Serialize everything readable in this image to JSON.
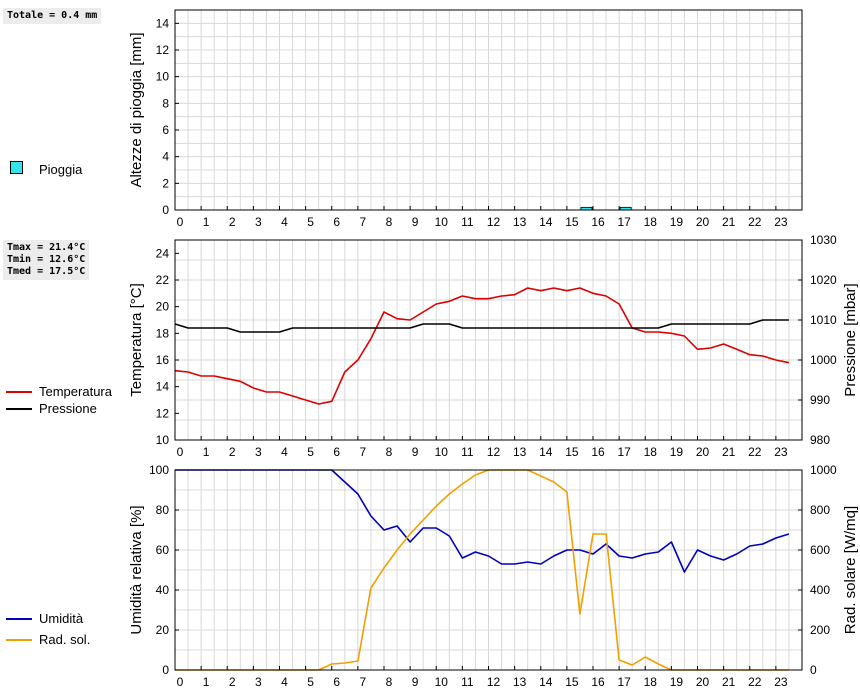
{
  "rain_panel": {
    "total_label": "Totale = 0.4 mm",
    "legend": {
      "label": "Pioggia",
      "color": "#33e6ee"
    }
  },
  "temp_panel": {
    "stats": [
      "Tmax = 21.4°C",
      "Tmin = 12.6°C",
      "Tmed = 17.5°C"
    ],
    "legend": [
      {
        "label": "Temperatura",
        "color": "#dd0000"
      },
      {
        "label": "Pressione",
        "color": "#000000"
      }
    ]
  },
  "hum_panel": {
    "legend": [
      {
        "label": "Umidità",
        "color": "#0000bb"
      },
      {
        "label": "Rad. sol.",
        "color": "#f2a000"
      }
    ]
  },
  "chart_data": [
    {
      "type": "bar",
      "ylabel": "Altezze di pioggia [mm]",
      "xlim": [
        0,
        24
      ],
      "ylim": [
        0,
        15
      ],
      "x_ticks": [
        0,
        1,
        2,
        3,
        4,
        5,
        6,
        7,
        8,
        9,
        10,
        11,
        12,
        13,
        14,
        15,
        16,
        17,
        18,
        19,
        20,
        21,
        22,
        23
      ],
      "y_ticks": [
        0,
        2,
        4,
        6,
        8,
        10,
        12,
        14
      ],
      "grid": true,
      "series": [
        {
          "name": "Pioggia",
          "color": "#33e6ee",
          "bars": [
            {
              "x0": 15.5,
              "x1": 16.0,
              "value": 0.2
            },
            {
              "x0": 17.0,
              "x1": 17.5,
              "value": 0.2
            }
          ]
        }
      ]
    },
    {
      "type": "line",
      "ylabel": "Temperatura [°C]",
      "y2label": "Pressione [mbar]",
      "xlim": [
        0,
        24
      ],
      "ylim": [
        10,
        25
      ],
      "y2lim": [
        980,
        1030
      ],
      "x_ticks": [
        0,
        1,
        2,
        3,
        4,
        5,
        6,
        7,
        8,
        9,
        10,
        11,
        12,
        13,
        14,
        15,
        16,
        17,
        18,
        19,
        20,
        21,
        22,
        23
      ],
      "y_ticks": [
        10,
        12,
        14,
        16,
        18,
        20,
        22,
        24
      ],
      "y2_ticks": [
        980,
        990,
        1000,
        1010,
        1020,
        1030
      ],
      "grid": true,
      "series": [
        {
          "name": "Temperatura",
          "axis": "left",
          "color": "#dd0000",
          "x": [
            0,
            0.5,
            1,
            1.5,
            2,
            2.5,
            3,
            3.5,
            4,
            4.5,
            5,
            5.5,
            6,
            6.5,
            7,
            7.5,
            8,
            8.5,
            9,
            9.5,
            10,
            10.5,
            11,
            11.5,
            12,
            12.5,
            13,
            13.5,
            14,
            14.5,
            15,
            15.5,
            16,
            16.5,
            17,
            17.5,
            18,
            18.5,
            19,
            19.5,
            20,
            20.5,
            21,
            21.5,
            22,
            22.5,
            23,
            23.5
          ],
          "y": [
            15.2,
            15.1,
            14.8,
            14.8,
            14.6,
            14.4,
            13.9,
            13.6,
            13.6,
            13.3,
            13.0,
            12.7,
            12.9,
            15.1,
            16.0,
            17.6,
            19.6,
            19.1,
            19.0,
            19.6,
            20.2,
            20.4,
            20.8,
            20.6,
            20.6,
            20.8,
            20.9,
            21.4,
            21.2,
            21.4,
            21.2,
            21.4,
            21.0,
            20.8,
            20.2,
            18.4,
            18.1,
            18.1,
            18.0,
            17.8,
            16.8,
            16.9,
            17.2,
            16.8,
            16.4,
            16.3,
            16.0,
            15.8
          ]
        },
        {
          "name": "Pressione",
          "axis": "right",
          "color": "#000000",
          "x": [
            0,
            0.5,
            1,
            1.5,
            2,
            2.5,
            3,
            3.5,
            4,
            4.5,
            5,
            5.5,
            6,
            6.5,
            7,
            7.5,
            8,
            8.5,
            9,
            9.5,
            10,
            10.5,
            11,
            11.5,
            12,
            12.5,
            13,
            13.5,
            14,
            14.5,
            15,
            15.5,
            16,
            16.5,
            17,
            17.5,
            18,
            18.5,
            19,
            19.5,
            20,
            20.5,
            21,
            21.5,
            22,
            22.5,
            23,
            23.5
          ],
          "y": [
            1009,
            1008,
            1008,
            1008,
            1008,
            1007,
            1007,
            1007,
            1007,
            1008,
            1008,
            1008,
            1008,
            1008,
            1008,
            1008,
            1008,
            1008,
            1008,
            1009,
            1009,
            1009,
            1008,
            1008,
            1008,
            1008,
            1008,
            1008,
            1008,
            1008,
            1008,
            1008,
            1008,
            1008,
            1008,
            1008,
            1008,
            1008,
            1009,
            1009,
            1009,
            1009,
            1009,
            1009,
            1009,
            1010,
            1010,
            1010
          ]
        }
      ]
    },
    {
      "type": "line",
      "ylabel": "Umidità relativa [%]",
      "y2label": "Rad. solare [W/mq]",
      "xlim": [
        0,
        24
      ],
      "ylim": [
        0,
        100
      ],
      "y2lim": [
        0,
        1000
      ],
      "x_ticks": [
        0,
        1,
        2,
        3,
        4,
        5,
        6,
        7,
        8,
        9,
        10,
        11,
        12,
        13,
        14,
        15,
        16,
        17,
        18,
        19,
        20,
        21,
        22,
        23
      ],
      "y_ticks": [
        0,
        20,
        40,
        60,
        80,
        100
      ],
      "y2_ticks": [
        0,
        200,
        400,
        600,
        800,
        1000
      ],
      "grid": true,
      "series": [
        {
          "name": "Umidità",
          "axis": "left",
          "color": "#0000bb",
          "x": [
            0,
            0.5,
            1,
            1.5,
            2,
            2.5,
            3,
            3.5,
            4,
            4.5,
            5,
            5.5,
            6,
            6.5,
            7,
            7.5,
            8,
            8.5,
            9,
            9.5,
            10,
            10.5,
            11,
            11.5,
            12,
            12.5,
            13,
            13.5,
            14,
            14.5,
            15,
            15.5,
            16,
            16.5,
            17,
            17.5,
            18,
            18.5,
            19,
            19.5,
            20,
            20.5,
            21,
            21.5,
            22,
            22.5,
            23,
            23.5
          ],
          "y": [
            100,
            100,
            100,
            100,
            100,
            100,
            100,
            100,
            100,
            100,
            100,
            100,
            100,
            94,
            88,
            77,
            70,
            72,
            64,
            71,
            71,
            67,
            56,
            59,
            57,
            53,
            53,
            54,
            53,
            57,
            60,
            60,
            58,
            63,
            57,
            56,
            58,
            59,
            64,
            49,
            60,
            57,
            55,
            58,
            62,
            63,
            66,
            68
          ]
        },
        {
          "name": "Rad. sol.",
          "axis": "right",
          "color": "#f2a000",
          "x": [
            0,
            0.5,
            1,
            1.5,
            2,
            2.5,
            3,
            3.5,
            4,
            4.5,
            5,
            5.5,
            6,
            6.5,
            7,
            7.5,
            8,
            8.5,
            9,
            9.5,
            10,
            10.5,
            11,
            11.5,
            12,
            12.5,
            13,
            13.5,
            14,
            14.5,
            15,
            15.5,
            16,
            16.5,
            17,
            17.5,
            18,
            18.5,
            19,
            19.5,
            20,
            20.5,
            21,
            21.5,
            22,
            22.5,
            23,
            23.5
          ],
          "y": [
            0,
            0,
            0,
            0,
            0,
            0,
            0,
            0,
            0,
            0,
            0,
            0,
            30,
            35,
            45,
            410,
            510,
            600,
            680,
            750,
            820,
            880,
            930,
            975,
            1000,
            1000,
            1000,
            1000,
            970,
            940,
            890,
            280,
            680,
            680,
            50,
            25,
            65,
            30,
            0,
            0,
            0,
            0,
            0,
            0,
            0,
            0,
            0,
            0
          ]
        }
      ]
    }
  ]
}
